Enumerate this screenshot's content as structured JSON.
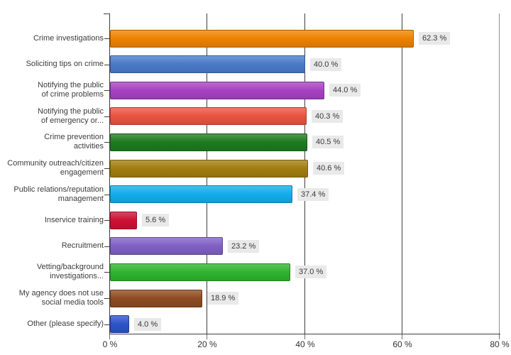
{
  "chart_data": {
    "type": "bar",
    "orientation": "horizontal",
    "title": "",
    "xlabel": "",
    "ylabel": "",
    "xlim": [
      0,
      80
    ],
    "grid": "vertical-solid",
    "legend": "none",
    "value_suffix": " %",
    "categories": [
      "Crime investigations",
      "Soliciting tips on crime",
      "Notifying the public of crime problems",
      "Notifying the public of emergency or...",
      "Crime prevention activities",
      "Community outreach/citizen engagement",
      "Public relations/reputation management",
      "Inservice training",
      "Recruitment",
      "Vetting/background investigations...",
      "My agency does not use social media tools",
      "Other (please specify)"
    ],
    "category_lines": [
      [
        "Crime investigations"
      ],
      [
        "Soliciting tips on crime"
      ],
      [
        "Notifying the public",
        "of crime problems"
      ],
      [
        "Notifying the public",
        "of emergency or..."
      ],
      [
        "Crime prevention",
        "activities"
      ],
      [
        "Community outreach/citizen",
        "engagement"
      ],
      [
        "Public relations/reputation",
        "management"
      ],
      [
        "Inservice training"
      ],
      [
        "Recruitment"
      ],
      [
        "Vetting/background",
        "investigations..."
      ],
      [
        "My agency does not use",
        "social media tools"
      ],
      [
        "Other (please specify)"
      ]
    ],
    "values": [
      62.3,
      40.0,
      44.0,
      40.3,
      40.5,
      40.6,
      37.4,
      5.6,
      23.2,
      37.0,
      18.9,
      4.0
    ],
    "value_labels": [
      "62.3 %",
      "40.0 %",
      "44.0 %",
      "40.3 %",
      "40.5 %",
      "40.6 %",
      "37.4 %",
      "5.6 %",
      "23.2 %",
      "37.0 %",
      "18.9 %",
      "4.0 %"
    ],
    "bar_colors": [
      "#EE8200",
      "#4A7BC8",
      "#A742C3",
      "#E95440",
      "#1E7B1F",
      "#A27E10",
      "#12ADEB",
      "#CE1134",
      "#8061C5",
      "#2FB42F",
      "#8F4B20",
      "#2E54C8"
    ],
    "x_ticks": [
      {
        "value": 0,
        "label": "0 %"
      },
      {
        "value": 20,
        "label": "20 %"
      },
      {
        "value": 40,
        "label": "40 %"
      },
      {
        "value": 60,
        "label": "60 %"
      },
      {
        "value": 80,
        "label": "80 %"
      }
    ]
  },
  "styles": {
    "axis_color": "#3f3f3f",
    "grid_color": "#3f3f3f",
    "grid_color_last": "#8f8f8f",
    "category_label_color": "#3c3c3c",
    "value_box_bg": "#e9e9e9",
    "value_text_color": "#3a3a3a",
    "x_tick_label_color": "#333333",
    "background": "#ffffff"
  }
}
